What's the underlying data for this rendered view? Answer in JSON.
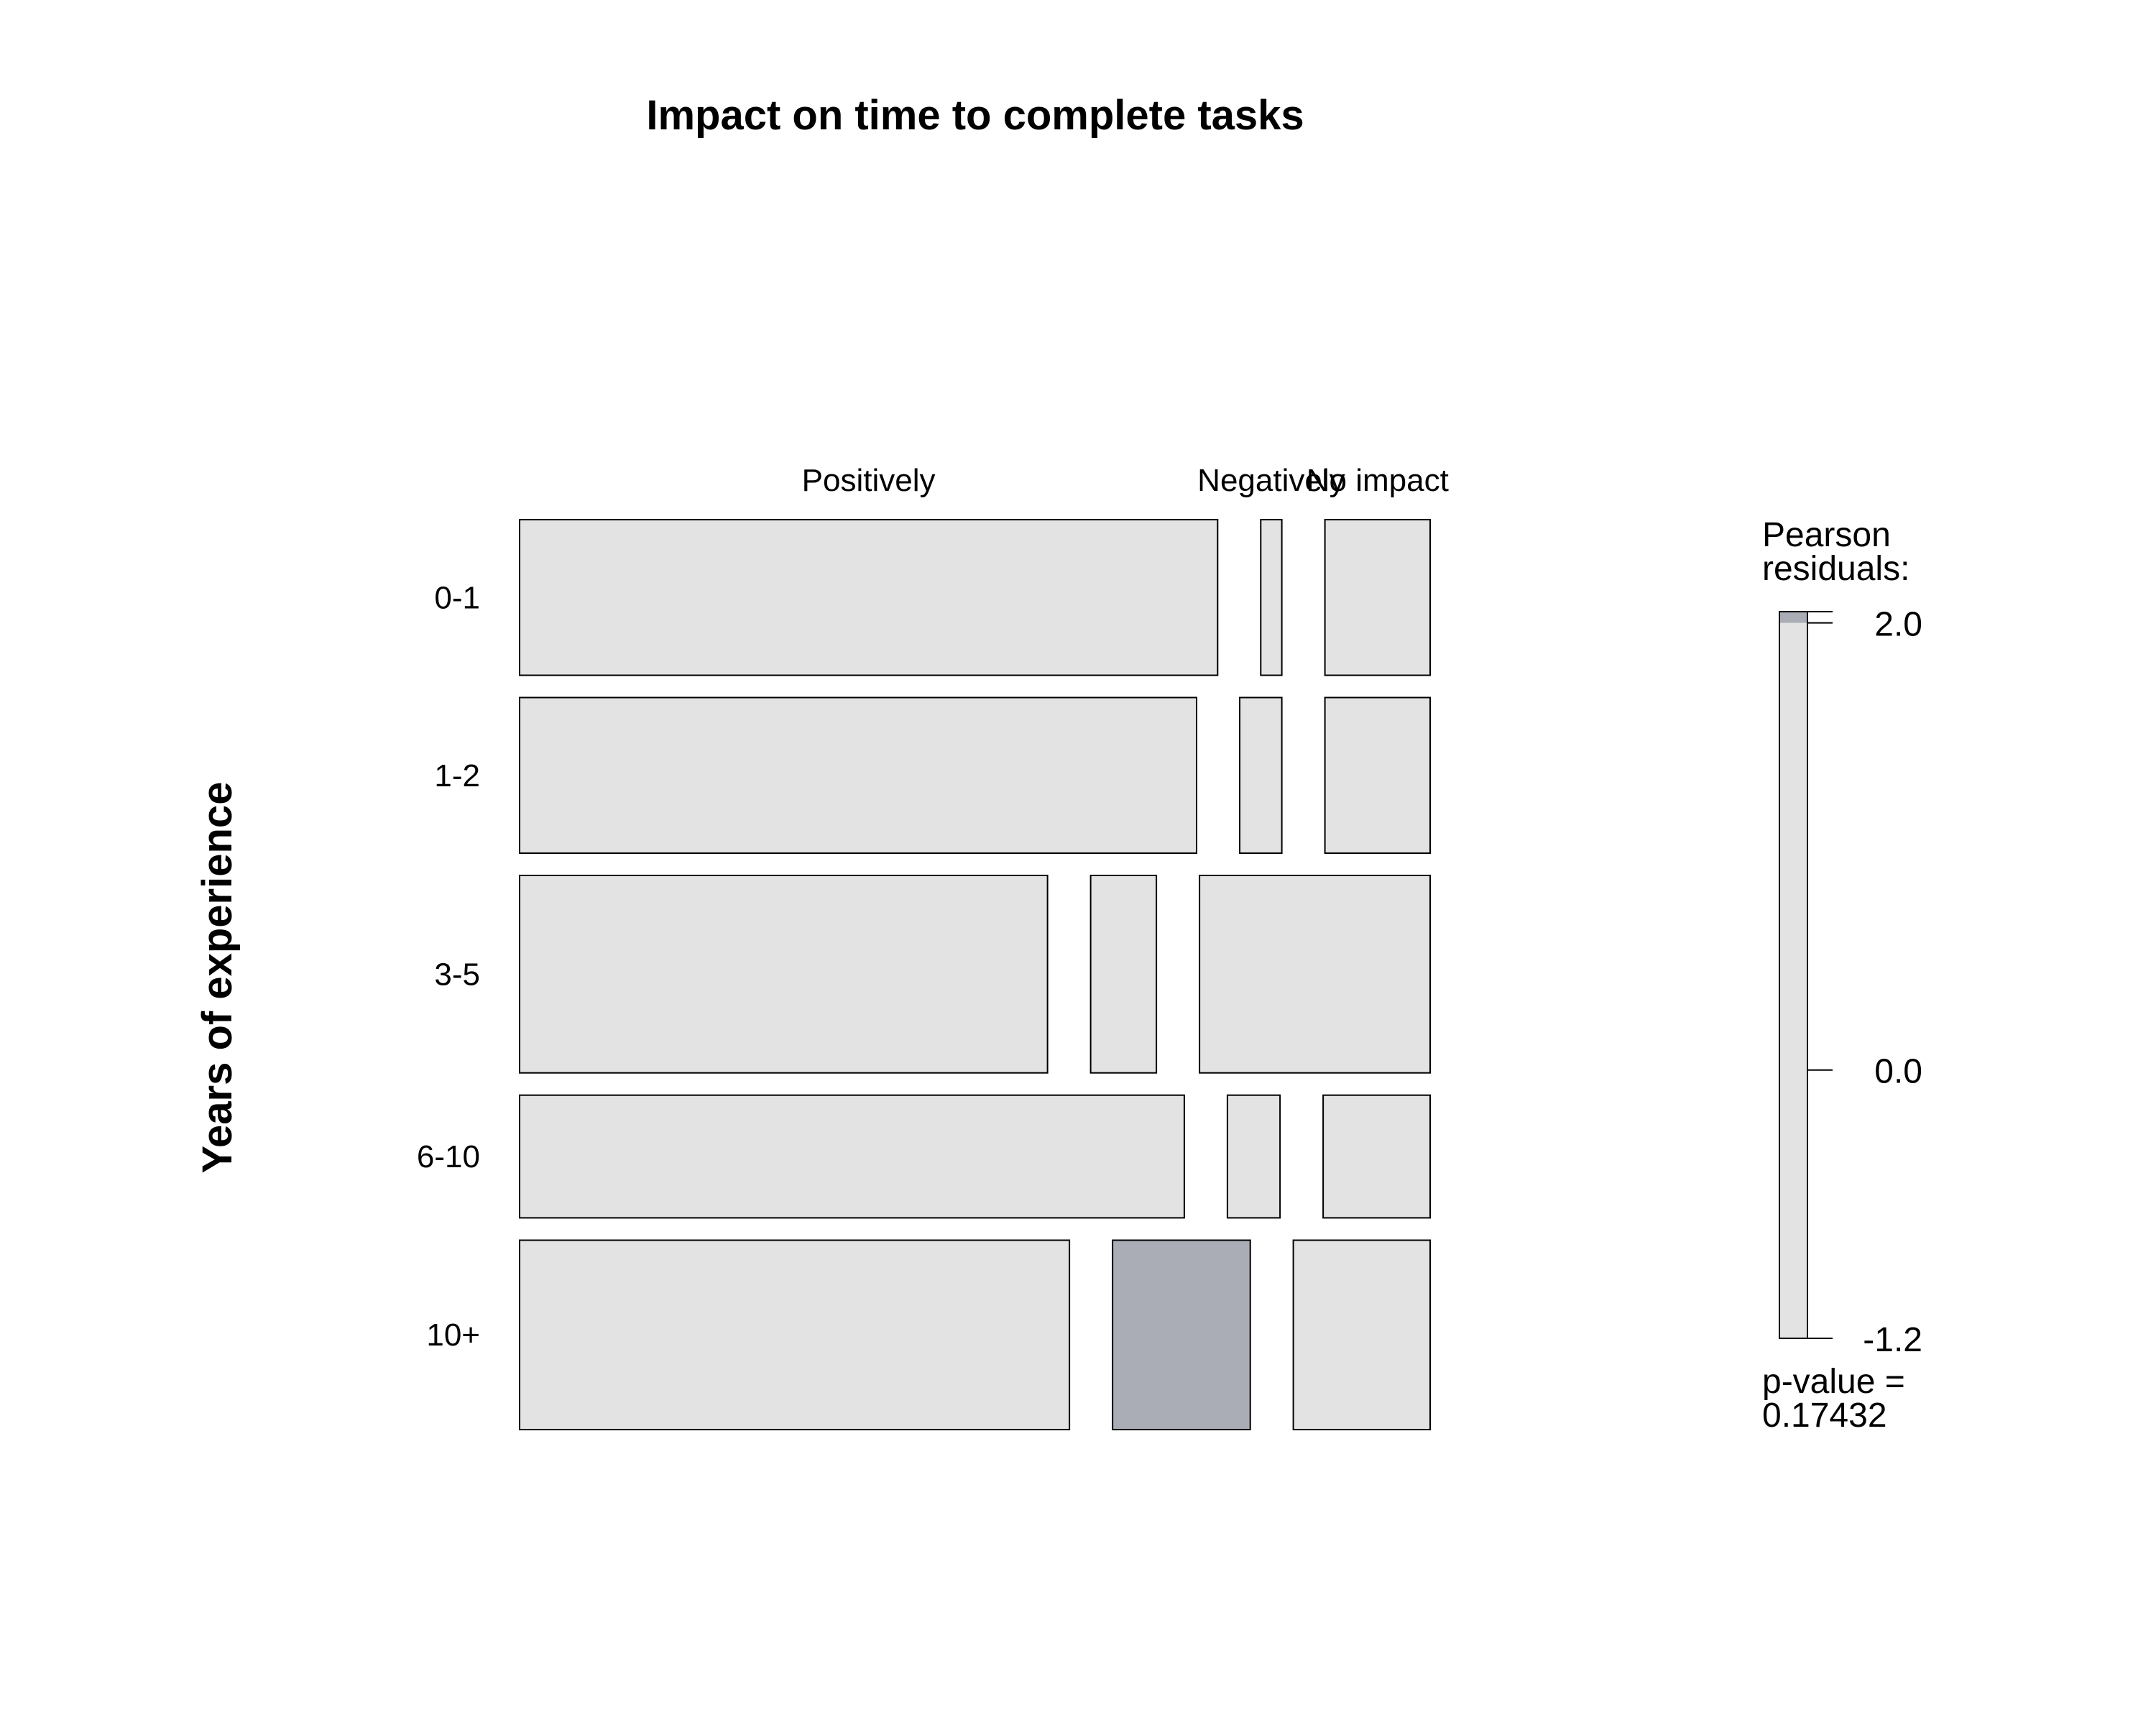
{
  "chart_data": {
    "type": "mosaic",
    "title": "Impact on time to complete tasks",
    "ylabel": "Years of experience",
    "xlabel": "",
    "column_levels": [
      "Positively",
      "Negatively",
      "No impact"
    ],
    "row_levels": [
      "0-1",
      "1-2",
      "3-5",
      "6-10",
      "10+"
    ],
    "row_proportions": [
      0.175,
      0.175,
      0.222,
      0.138,
      0.213
    ],
    "cell_proportions": [
      [
        0.796,
        0.024,
        0.12
      ],
      [
        0.772,
        0.048,
        0.12
      ],
      [
        0.602,
        0.075,
        0.263
      ],
      [
        0.758,
        0.06,
        0.122
      ],
      [
        0.627,
        0.157,
        0.156
      ]
    ],
    "residual_shading": [
      [
        "#e3e3e3",
        "#e3e3e3",
        "#e3e3e3"
      ],
      [
        "#e3e3e3",
        "#e3e3e3",
        "#e3e3e3"
      ],
      [
        "#e3e3e3",
        "#e3e3e3",
        "#e3e3e3"
      ],
      [
        "#e3e3e3",
        "#e3e3e3",
        "#e3e3e3"
      ],
      [
        "#e3e3e3",
        "#aaacb6",
        "#e3e3e3"
      ]
    ],
    "legend": {
      "title_line1": "Pearson",
      "title_line2": "residuals:",
      "min": -1.2,
      "max": 2.05,
      "threshold": 2.0,
      "ticks": [
        {
          "value": 2.0,
          "label": "2.0"
        },
        {
          "value": 0.0,
          "label": "0.0"
        },
        {
          "value": -1.2,
          "label": "-1.2"
        }
      ],
      "base_color": "#e3e3e3",
      "high_color": "#aaacb6",
      "pvalue_line1": "p-value =",
      "pvalue_line2": "0.17432"
    }
  }
}
